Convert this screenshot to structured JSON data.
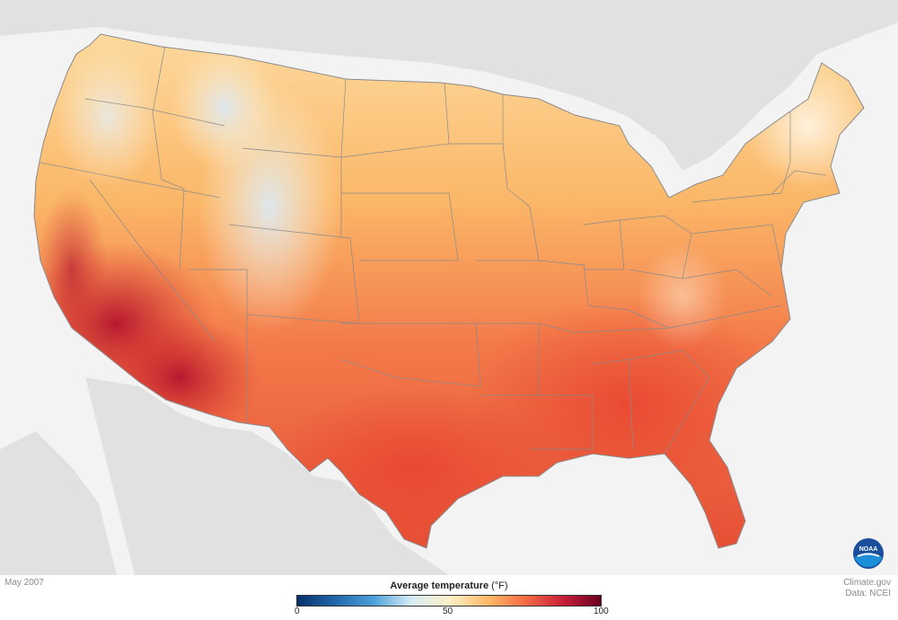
{
  "map": {
    "region": "Contiguous United States",
    "metric": "Average temperature",
    "period": "May 2007",
    "colors": {
      "land_background": "#e1e1e1",
      "water_background": "#f3f3f3",
      "state_border": "#8a8a8a"
    }
  },
  "footer": {
    "date_label": "May 2007",
    "credit_line1": "Climate.gov",
    "credit_line2": "Data: NCEI"
  },
  "legend": {
    "title": "Average temperature",
    "unit": "(°F)",
    "min_label": "0",
    "mid_label": "50",
    "max_label": "100",
    "color_stops": [
      "#08306b",
      "#2166ac",
      "#4aa0d8",
      "#d6ecf6",
      "#fdf0c8",
      "#fdbb6a",
      "#f46d43",
      "#c81e38",
      "#6b0022"
    ]
  },
  "logo": {
    "text": "NOAA",
    "icon": "noaa-logo-icon",
    "color": "#1a4f9e"
  }
}
